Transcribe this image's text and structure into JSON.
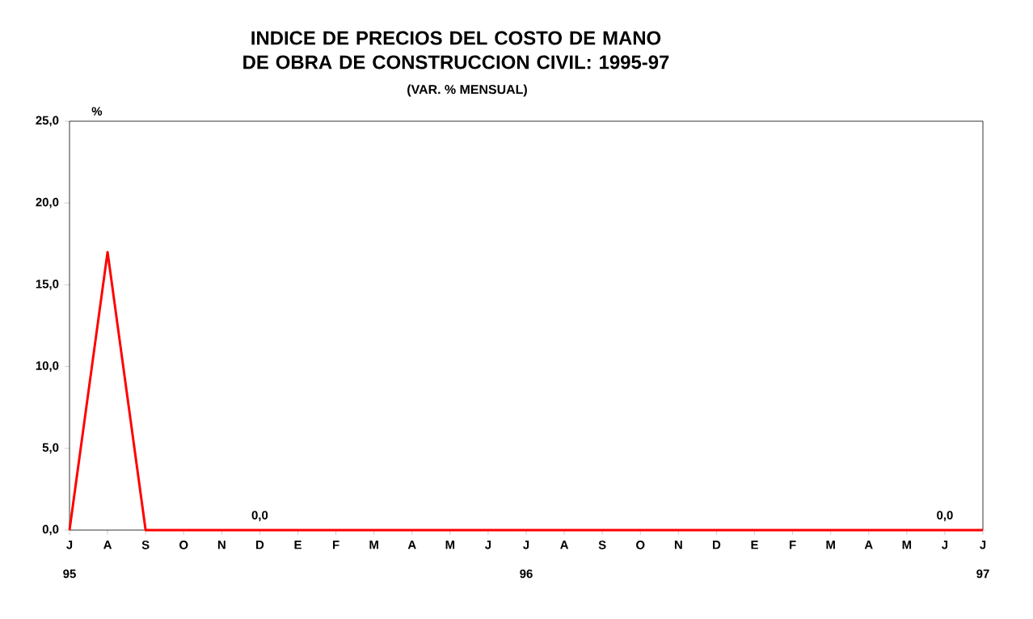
{
  "chart_data": {
    "type": "line",
    "title": "INDICE  DE PRECIOS DEL COSTO DE MANO DE OBRA DE CONSTRUCCION CIVIL: 1995-97",
    "subtitle": "(VAR. % MENSUAL)",
    "ylabel": "%",
    "categories": [
      "J",
      "A",
      "S",
      "O",
      "N",
      "D",
      "E",
      "F",
      "M",
      "A",
      "M",
      "J",
      "J",
      "A",
      "S",
      "O",
      "N",
      "D",
      "E",
      "F",
      "M",
      "A",
      "M",
      "J",
      "J"
    ],
    "values": [
      0,
      17,
      0,
      0,
      0,
      0,
      0,
      0,
      0,
      0,
      0,
      0,
      0,
      0,
      0,
      0,
      0,
      0,
      0,
      0,
      0,
      0,
      0,
      0,
      0
    ],
    "value_labels": [
      null,
      null,
      null,
      null,
      null,
      "0,0",
      null,
      null,
      null,
      null,
      null,
      null,
      null,
      null,
      null,
      null,
      null,
      null,
      null,
      null,
      null,
      null,
      null,
      "0,0",
      null
    ],
    "color": "#ff0000",
    "ylim": [
      0,
      25
    ],
    "yticks": [
      {
        "value": 0,
        "label": "0,0"
      },
      {
        "value": 5,
        "label": "5,0"
      },
      {
        "value": 10,
        "label": "10,0"
      },
      {
        "value": 15,
        "label": "15,0"
      },
      {
        "value": 20,
        "label": "20,0"
      },
      {
        "value": 25,
        "label": "25,0"
      }
    ],
    "grid": false,
    "marker": "none",
    "line_style": "solid",
    "annotations": [
      "95",
      "96",
      "97"
    ]
  }
}
